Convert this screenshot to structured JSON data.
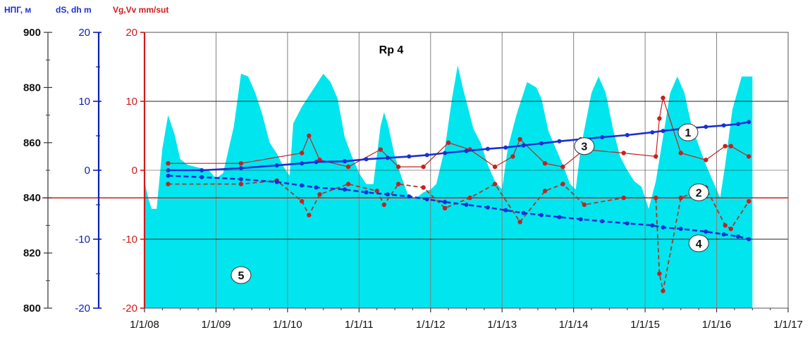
{
  "chart_data": {
    "type": "area",
    "title": "Rp 4",
    "axes": {
      "left1": {
        "label": "НПГ, м",
        "range": [
          800,
          900
        ],
        "ticks": [
          "900",
          "880",
          "860",
          "840",
          "820",
          "800"
        ],
        "color": "#333333"
      },
      "left2": {
        "label": "dS, dh m",
        "range": [
          -20,
          20
        ],
        "ticks": [
          "20",
          "10",
          "0",
          "-10",
          "-20"
        ],
        "color": "#0b1fb8"
      },
      "left3": {
        "label": "Vg,Vv mm/sut",
        "range": [
          -20,
          20
        ],
        "ticks": [
          "20",
          "10",
          "0",
          "-10",
          "-20"
        ],
        "color": "#d11a1a"
      },
      "x": {
        "ticks": [
          "1/1/08",
          "1/1/09",
          "1/1/10",
          "1/1/11",
          "1/1/12",
          "1/1/13",
          "1/1/14",
          "1/1/15",
          "1/1/16",
          "1/1/17"
        ],
        "range": [
          2008.0,
          2017.0
        ]
      }
    },
    "grid": true,
    "colors": {
      "fill": "#00e5ee",
      "blue": "#1a2fd6",
      "red": "#c8201e",
      "red_dark": "#a83a2a"
    },
    "series": [
      {
        "id": "5",
        "kind": "area",
        "axis": "left1",
        "x": [
          2008.0,
          2008.05,
          2008.1,
          2008.17,
          2008.25,
          2008.33,
          2008.42,
          2008.5,
          2008.6,
          2008.75,
          2008.9,
          2009.0,
          2009.1,
          2009.25,
          2009.35,
          2009.45,
          2009.55,
          2009.65,
          2009.75,
          2009.85,
          2009.95,
          2010.03,
          2010.08,
          2010.2,
          2010.35,
          2010.5,
          2010.6,
          2010.7,
          2010.8,
          2010.9,
          2011.0,
          2011.1,
          2011.2,
          2011.3,
          2011.35,
          2011.4,
          2011.5,
          2011.6,
          2011.7,
          2011.8,
          2011.9,
          2012.0,
          2012.08,
          2012.2,
          2012.3,
          2012.38,
          2012.45,
          2012.5,
          2012.6,
          2012.7,
          2012.8,
          2012.9,
          2013.0,
          2013.08,
          2013.2,
          2013.35,
          2013.48,
          2013.55,
          2013.65,
          2013.75,
          2013.85,
          2013.95,
          2014.03,
          2014.1,
          2014.25,
          2014.35,
          2014.45,
          2014.55,
          2014.65,
          2014.75,
          2014.85,
          2014.95,
          2015.05,
          2015.15,
          2015.25,
          2015.35,
          2015.45,
          2015.55,
          2015.65,
          2015.75,
          2015.85,
          2015.95,
          2016.05,
          2016.12,
          2016.22,
          2016.35,
          2016.42,
          2016.5
        ],
        "y": [
          846,
          840,
          836,
          836,
          858,
          870,
          863,
          854,
          852,
          851,
          850,
          847,
          849,
          866,
          885,
          884,
          878,
          870,
          860,
          856,
          851,
          848,
          867,
          873,
          879,
          885,
          882,
          876,
          862,
          855,
          849,
          845,
          845,
          866,
          871,
          867,
          855,
          847,
          840,
          840,
          842,
          843,
          845,
          858,
          876,
          888,
          880,
          875,
          865,
          860,
          852,
          846,
          843,
          858,
          870,
          882,
          880,
          876,
          864,
          858,
          852,
          845,
          843,
          858,
          878,
          884,
          878,
          865,
          855,
          850,
          846,
          844,
          836,
          846,
          862,
          878,
          884,
          878,
          866,
          859,
          852,
          846,
          840,
          852,
          872,
          884,
          884,
          884
        ]
      },
      {
        "id": "1",
        "kind": "line",
        "axis": "left3",
        "style": "solid-thin",
        "color": "#c8201e",
        "x": [
          2008.33,
          2009.35,
          2010.2,
          2010.3,
          2010.45,
          2010.85,
          2011.3,
          2011.55,
          2011.9,
          2012.25,
          2012.55,
          2012.9,
          2013.15,
          2013.25,
          2013.6,
          2013.85,
          2014.15,
          2014.7,
          2015.15,
          2015.2,
          2015.25,
          2015.5,
          2015.85,
          2016.12,
          2016.2,
          2016.45
        ],
        "y": [
          1,
          1,
          2.5,
          5,
          1.5,
          0.5,
          3,
          0.5,
          0.5,
          4,
          3,
          0.5,
          2,
          4.5,
          1,
          0.5,
          3,
          2.5,
          2,
          7.5,
          10.5,
          2.5,
          1.5,
          3.5,
          3.5,
          2
        ]
      },
      {
        "id": "2",
        "kind": "line",
        "axis": "left3",
        "style": "dashed",
        "color": "#a83a2a",
        "x": [
          2008.33,
          2009.35,
          2009.85,
          2010.2,
          2010.3,
          2010.45,
          2010.85,
          2011.25,
          2011.35,
          2011.55,
          2011.9,
          2012.2,
          2012.55,
          2012.9,
          2013.25,
          2013.6,
          2013.85,
          2014.15,
          2014.7,
          2015.15,
          2015.2,
          2015.25,
          2015.5,
          2015.85,
          2016.12,
          2016.2,
          2016.45
        ],
        "y": [
          -2,
          -2,
          -1.5,
          -4.5,
          -6.5,
          -3.5,
          -2,
          -3,
          -5,
          -2,
          -2.5,
          -5.5,
          -4,
          -2,
          -7.5,
          -3,
          -2,
          -5,
          -4,
          -4,
          -15,
          -17.5,
          -4,
          -2.5,
          -8,
          -8.5,
          -4.5
        ]
      },
      {
        "id": "3",
        "kind": "line",
        "axis": "left2",
        "style": "solid-thick",
        "color": "#1a2fd6",
        "x": [
          2008.33,
          2008.8,
          2009.35,
          2009.85,
          2010.2,
          2010.4,
          2010.8,
          2011.1,
          2011.4,
          2011.7,
          2011.95,
          2012.2,
          2012.5,
          2012.8,
          2013.05,
          2013.3,
          2013.55,
          2013.8,
          2014.1,
          2014.4,
          2014.75,
          2015.1,
          2015.25,
          2015.5,
          2015.85,
          2016.1,
          2016.3,
          2016.45
        ],
        "y": [
          0,
          0,
          0.3,
          0.7,
          1,
          1.2,
          1.3,
          1.6,
          1.8,
          2,
          2.2,
          2.5,
          2.8,
          3.1,
          3.3,
          3.6,
          3.9,
          4.2,
          4.5,
          4.8,
          5.1,
          5.5,
          5.7,
          6,
          6.3,
          6.5,
          6.7,
          7
        ]
      },
      {
        "id": "4",
        "kind": "line",
        "axis": "left2",
        "style": "dashed-thick",
        "color": "#1a2fd6",
        "x": [
          2008.33,
          2008.8,
          2009.35,
          2009.85,
          2010.2,
          2010.4,
          2010.8,
          2011.1,
          2011.4,
          2011.7,
          2011.95,
          2012.2,
          2012.5,
          2012.8,
          2013.05,
          2013.3,
          2013.55,
          2013.8,
          2014.1,
          2014.4,
          2014.75,
          2015.1,
          2015.25,
          2015.5,
          2015.85,
          2016.1,
          2016.3,
          2016.45
        ],
        "y": [
          -0.8,
          -1,
          -1.3,
          -1.7,
          -2.2,
          -2.5,
          -2.8,
          -3.2,
          -3.5,
          -3.8,
          -4.2,
          -4.6,
          -5,
          -5.4,
          -5.8,
          -6.2,
          -6.5,
          -6.8,
          -7.1,
          -7.4,
          -7.7,
          -8,
          -8.3,
          -8.5,
          -8.9,
          -9.3,
          -9.6,
          -10
        ]
      }
    ],
    "callouts": [
      {
        "label": "1",
        "x": 2015.6,
        "y": 16,
        "axis": "left1_as_vg"
      },
      {
        "label": "2",
        "x": 2015.75,
        "y": 842,
        "axis": "left1"
      },
      {
        "label": "3",
        "x": 2014.15,
        "y": 3.5,
        "axis": "left2"
      },
      {
        "label": "4",
        "x": 2015.75,
        "y": -10.6,
        "axis": "left2"
      },
      {
        "label": "5",
        "x": 2009.35,
        "y": 812,
        "axis": "left1"
      }
    ]
  }
}
